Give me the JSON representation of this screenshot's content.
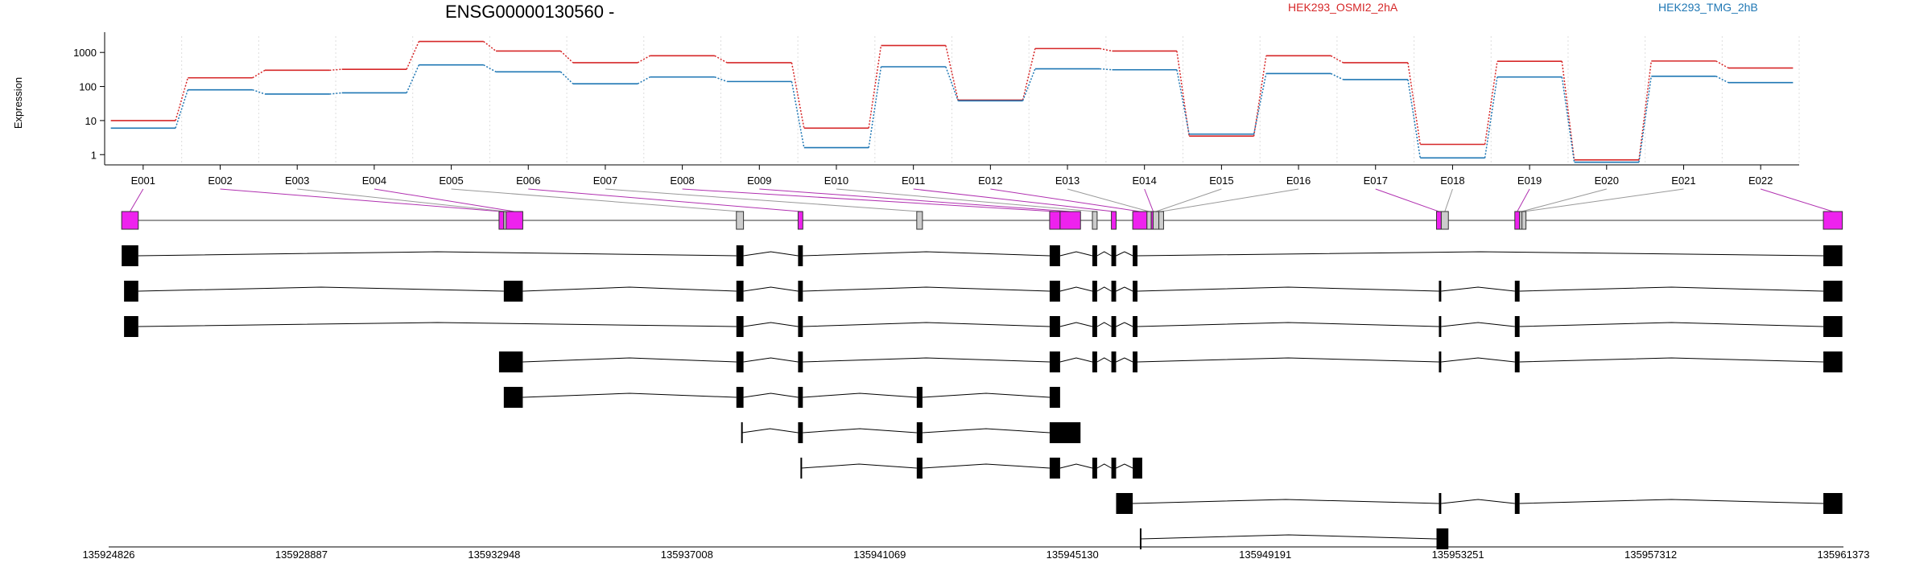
{
  "chart_data": {
    "type": "line",
    "title": "ENSG00000130560 -",
    "ylabel": "Expression",
    "y_scale": "log",
    "y_ticks": [
      1,
      10,
      100,
      1000
    ],
    "y_tick_labels": [
      "1",
      "10",
      "100",
      "1000"
    ],
    "ylim": [
      0.5,
      3000
    ],
    "grid": "vertical dotted",
    "legend_placement": "top-right",
    "categories": [
      "E001",
      "E002",
      "E003",
      "E004",
      "E005",
      "E006",
      "E007",
      "E008",
      "E009",
      "E010",
      "E011",
      "E012",
      "E013",
      "E014",
      "E015",
      "E016",
      "E017",
      "E018",
      "E019",
      "E020",
      "E021",
      "E022"
    ],
    "series": [
      {
        "name": "HEK293_OSMI2_2hA",
        "color": "#d62728",
        "values": [
          10,
          180,
          300,
          320,
          2100,
          1100,
          500,
          800,
          500,
          6,
          1600,
          40,
          1300,
          1100,
          3.5,
          800,
          500,
          2,
          550,
          0.7,
          560,
          350
        ]
      },
      {
        "name": "HEK293_TMG_2hB",
        "color": "#1f77b4",
        "values": [
          6,
          80,
          60,
          65,
          430,
          270,
          120,
          190,
          140,
          1.6,
          380,
          38,
          330,
          310,
          4,
          240,
          160,
          0.8,
          190,
          0.6,
          200,
          130
        ]
      }
    ],
    "genome_axis": {
      "tick_labels": [
        "135924826",
        "135928887",
        "135932948",
        "135937008",
        "135941069",
        "135945130",
        "135949191",
        "135953251",
        "135957312",
        "135961373"
      ],
      "range": [
        135924826,
        135961373
      ]
    },
    "exon_mapping_colors": {
      "differential": "#ee22ee",
      "neutral": "#cccccc"
    },
    "gene_model": [
      {
        "exon": "E001",
        "start": 135925100,
        "end": 135925450,
        "highlight": true
      },
      {
        "exon": "E002",
        "start": 135933050,
        "end": 135933150,
        "highlight": true
      },
      {
        "exon": "E003",
        "start": 135933150,
        "end": 135933200,
        "highlight": false
      },
      {
        "exon": "E004",
        "start": 135933200,
        "end": 135933550,
        "highlight": true
      },
      {
        "exon": "E005",
        "start": 135938050,
        "end": 135938200,
        "highlight": false
      },
      {
        "exon": "E006",
        "start": 135939350,
        "end": 135939450,
        "highlight": true
      },
      {
        "exon": "E007",
        "start": 135941850,
        "end": 135941970,
        "highlight": false
      },
      {
        "exon": "E008",
        "start": 135944650,
        "end": 135944870,
        "highlight": true
      },
      {
        "exon": "E009",
        "start": 135944870,
        "end": 135945300,
        "highlight": true
      },
      {
        "exon": "E010",
        "start": 135945550,
        "end": 135945650,
        "highlight": false
      },
      {
        "exon": "E011",
        "start": 135945950,
        "end": 135946050,
        "highlight": true
      },
      {
        "exon": "E012",
        "start": 135946400,
        "end": 135946700,
        "highlight": true
      },
      {
        "exon": "E013",
        "start": 135946700,
        "end": 135946790,
        "highlight": false
      },
      {
        "exon": "E014",
        "start": 135946790,
        "end": 135946830,
        "highlight": true
      },
      {
        "exon": "E015",
        "start": 135946830,
        "end": 135946950,
        "highlight": false
      },
      {
        "exon": "E016",
        "start": 135946950,
        "end": 135947050,
        "highlight": false
      },
      {
        "exon": "E017",
        "start": 135952800,
        "end": 135952900,
        "highlight": true
      },
      {
        "exon": "E018",
        "start": 135952900,
        "end": 135953050,
        "highlight": false
      },
      {
        "exon": "E019",
        "start": 135954450,
        "end": 135954550,
        "highlight": true
      },
      {
        "exon": "E020",
        "start": 135954550,
        "end": 135954600,
        "highlight": false
      },
      {
        "exon": "E021",
        "start": 135954600,
        "end": 135954650,
        "highlight": false
      },
      {
        "exon": "E022",
        "start": 135960950,
        "end": 135961350,
        "highlight": true
      }
    ],
    "transcripts": [
      {
        "exons": [
          [
            135925100,
            135925450
          ],
          [
            135938050,
            135938200
          ],
          [
            135939350,
            135939450
          ],
          [
            135944650,
            135944870
          ],
          [
            135945550,
            135945650
          ],
          [
            135945950,
            135946050
          ],
          [
            135946400,
            135946500
          ],
          [
            135960950,
            135961350
          ]
        ]
      },
      {
        "exons": [
          [
            135925150,
            135925450
          ],
          [
            135933150,
            135933550
          ],
          [
            135938050,
            135938200
          ],
          [
            135939350,
            135939450
          ],
          [
            135944650,
            135944870
          ],
          [
            135945550,
            135945650
          ],
          [
            135945950,
            135946050
          ],
          [
            135946400,
            135946500
          ],
          [
            135952850,
            135952900
          ],
          [
            135954450,
            135954550
          ],
          [
            135960950,
            135961350
          ]
        ]
      },
      {
        "exons": [
          [
            135925150,
            135925450
          ],
          [
            135938050,
            135938200
          ],
          [
            135939350,
            135939450
          ],
          [
            135944650,
            135944870
          ],
          [
            135945550,
            135945650
          ],
          [
            135945950,
            135946050
          ],
          [
            135946400,
            135946500
          ],
          [
            135952850,
            135952900
          ],
          [
            135954450,
            135954550
          ],
          [
            135960950,
            135961350
          ]
        ]
      },
      {
        "exons": [
          [
            135933050,
            135933550
          ],
          [
            135938050,
            135938200
          ],
          [
            135939350,
            135939450
          ],
          [
            135944650,
            135944870
          ],
          [
            135945550,
            135945650
          ],
          [
            135945950,
            135946050
          ],
          [
            135946400,
            135946500
          ],
          [
            135952850,
            135952900
          ],
          [
            135954450,
            135954550
          ],
          [
            135960950,
            135961350
          ]
        ]
      },
      {
        "exons": [
          [
            135933150,
            135933550
          ],
          [
            135938050,
            135938200
          ],
          [
            135939350,
            135939450
          ],
          [
            135941850,
            135941970
          ],
          [
            135944650,
            135944870
          ]
        ]
      },
      {
        "exons": [
          [
            135938150,
            135938170
          ],
          [
            135939350,
            135939450
          ],
          [
            135941850,
            135941970
          ],
          [
            135944650,
            135945300
          ]
        ]
      },
      {
        "exons": [
          [
            135939400,
            135939420
          ],
          [
            135941850,
            135941970
          ],
          [
            135944650,
            135944870
          ],
          [
            135945550,
            135945650
          ],
          [
            135945950,
            135946050
          ],
          [
            135946400,
            135946600
          ]
        ]
      },
      {
        "exons": [
          [
            135946050,
            135946400
          ],
          [
            135952850,
            135952900
          ],
          [
            135954450,
            135954550
          ],
          [
            135960950,
            135961350
          ]
        ]
      },
      {
        "exons": [
          [
            135946550,
            135946570
          ],
          [
            135952800,
            135953050
          ]
        ]
      }
    ]
  }
}
